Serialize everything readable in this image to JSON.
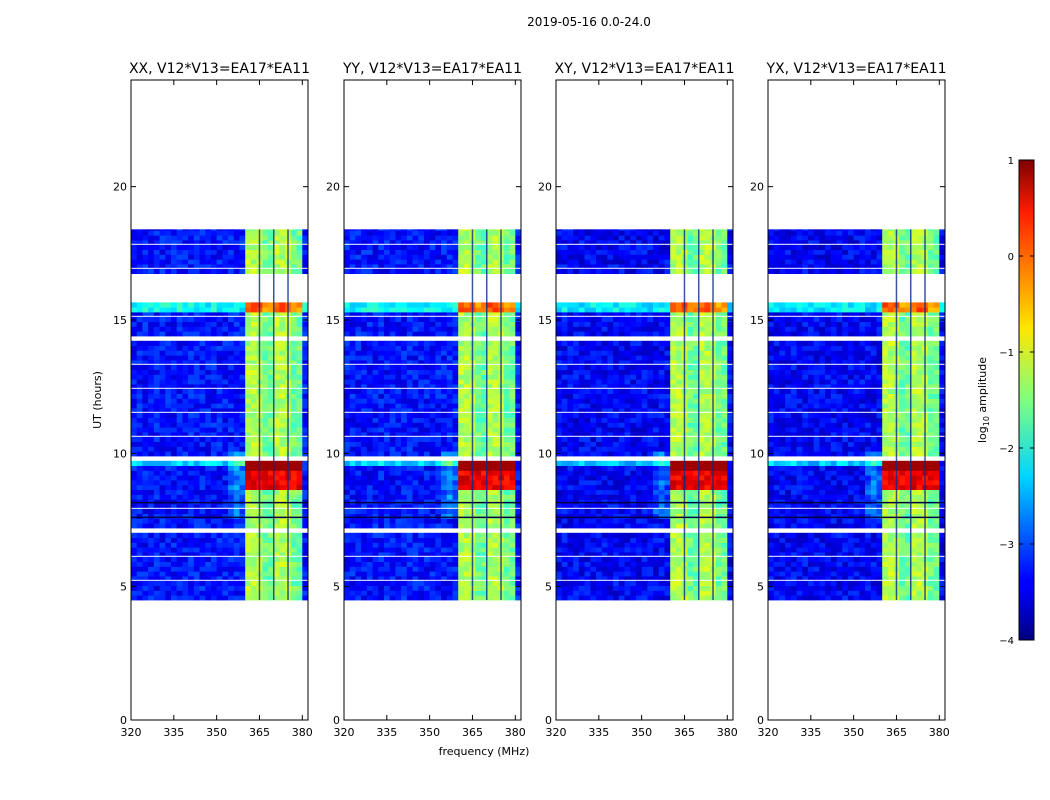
{
  "figure": {
    "suptitle": "2019-05-16 0.0-24.0"
  },
  "chart_data": {
    "type": "heatmap",
    "panels": [
      {
        "title": "XX, V12*V13=EA17*EA11"
      },
      {
        "title": "YY, V12*V13=EA17*EA11"
      },
      {
        "title": "XY, V12*V13=EA17*EA11"
      },
      {
        "title": "YX, V12*V13=EA17*EA11"
      }
    ],
    "xlabel": "frequency (MHz)",
    "ylabel": "UT (hours)",
    "xlim": [
      320,
      382
    ],
    "ylim": [
      0,
      24
    ],
    "xticks": [
      320,
      335,
      350,
      365,
      380
    ],
    "yticks": [
      0,
      5,
      10,
      15,
      20
    ],
    "colorbar": {
      "label": "log",
      "label_sub": "10",
      "label_rest": " amplitude",
      "ticks": [
        1,
        0,
        -1,
        -2,
        -3,
        -4
      ],
      "vmin": -4,
      "vmax": 1,
      "colormap": "jet"
    },
    "data_time_range": [
      4.5,
      18.4
    ],
    "gaps": [
      [
        15.6,
        16.6
      ],
      [
        14.1,
        14.25
      ],
      [
        9.6,
        9.75
      ],
      [
        6.9,
        7.1
      ]
    ],
    "rfi_band_mhz": [
      360,
      380
    ],
    "channel_lines_mhz": [
      365,
      370,
      375
    ],
    "strong_rfi_hours": [
      8.5,
      9.6
    ]
  }
}
